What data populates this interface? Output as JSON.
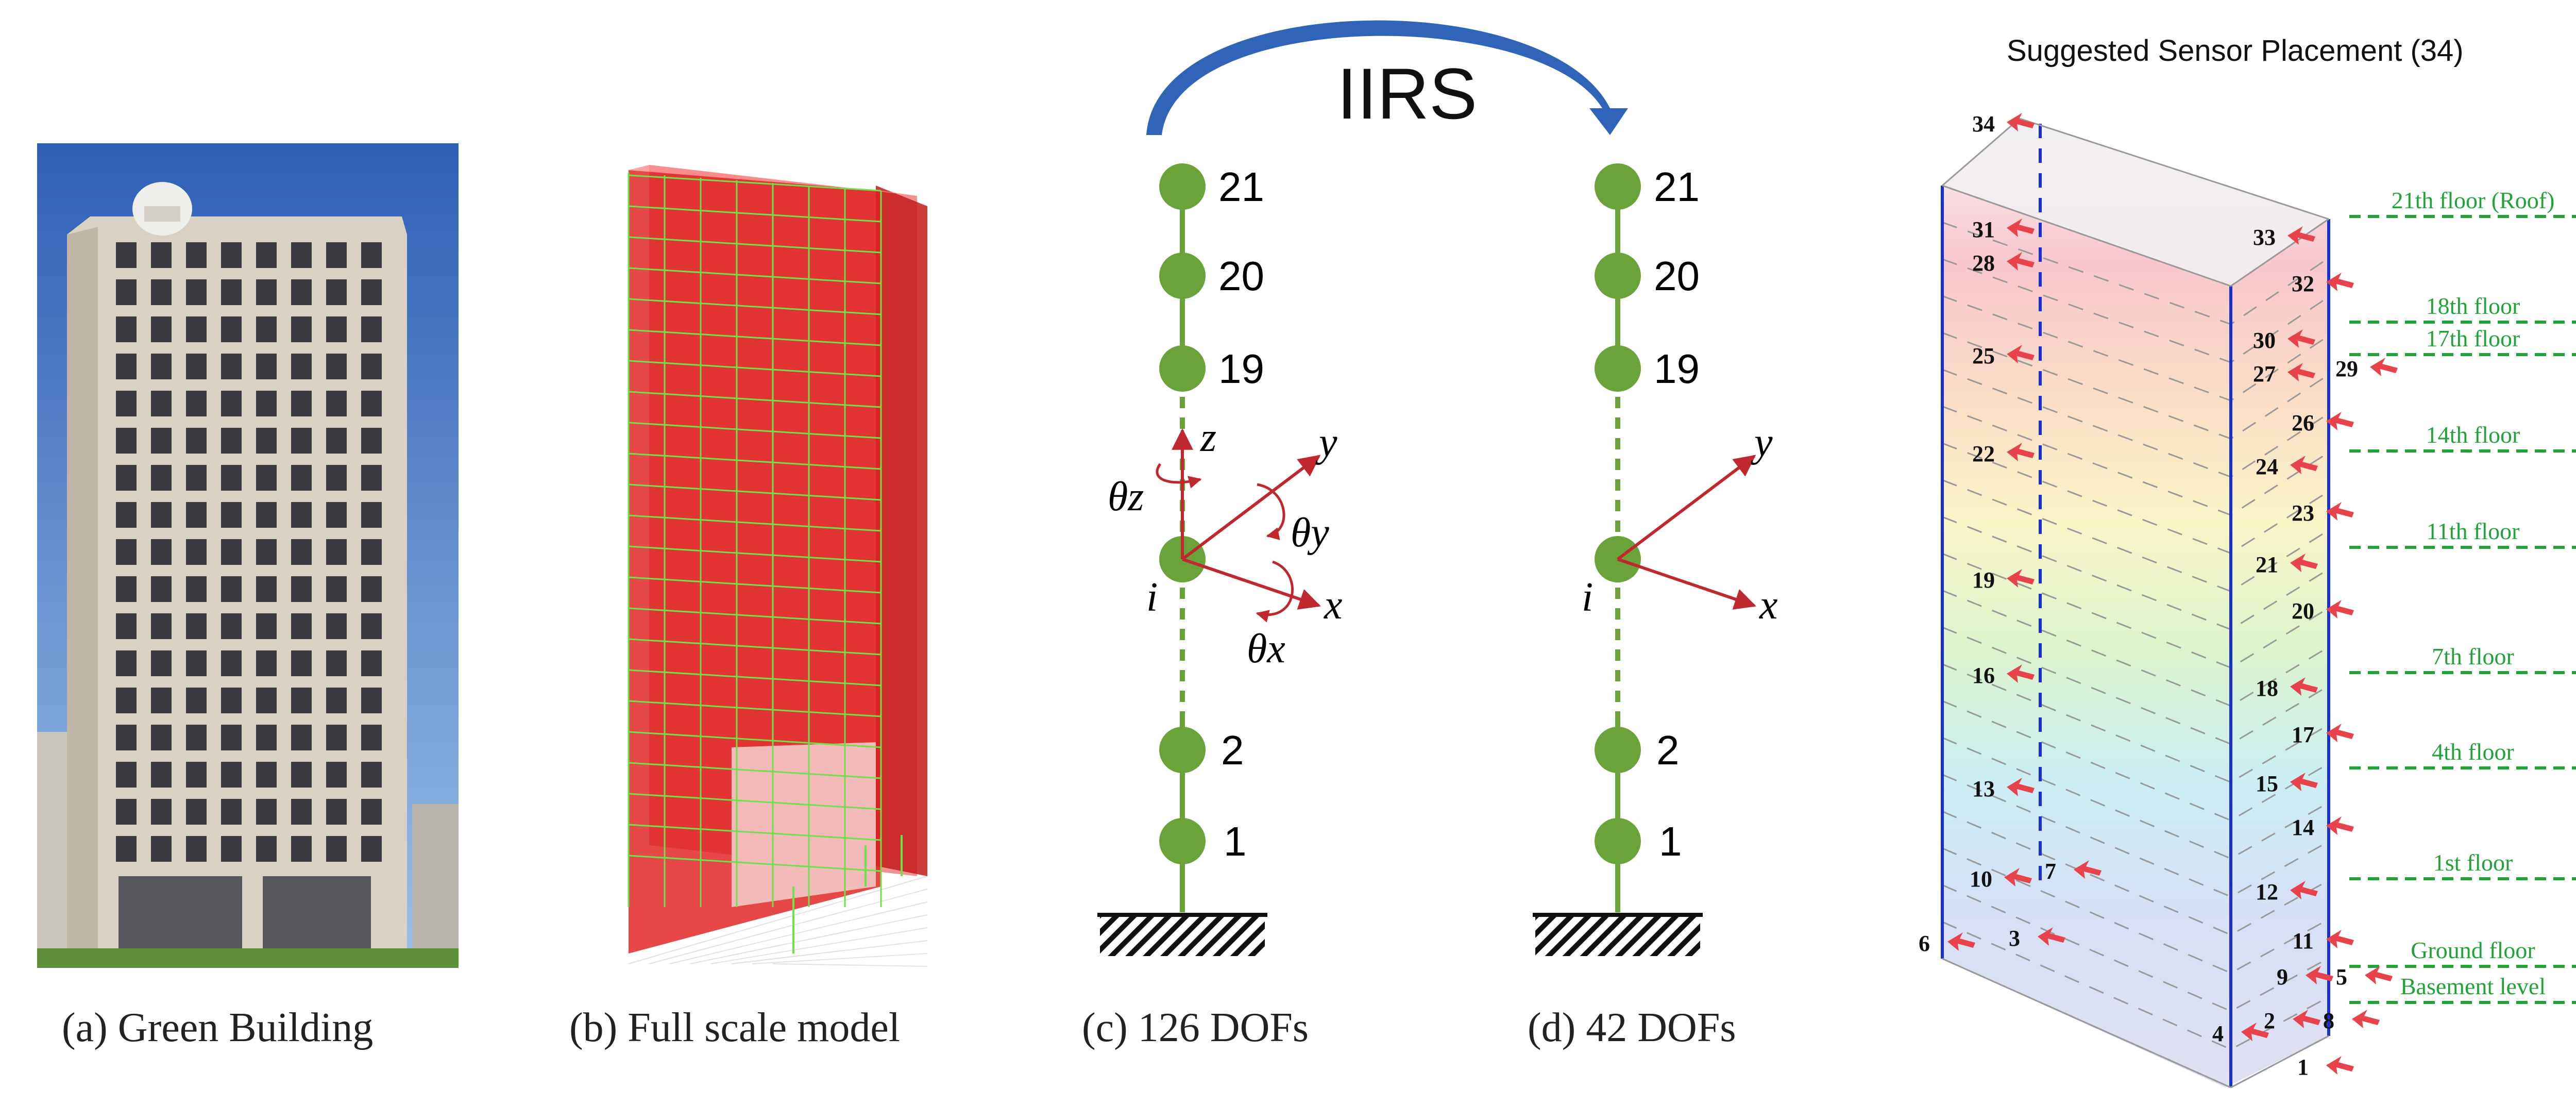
{
  "captions": {
    "a": "(a) Green Building",
    "b": "(b) Full scale model",
    "c": "(c) 126 DOFs",
    "d": "(d) 42 DOFs"
  },
  "iirs_label": "IIRS",
  "node_labels": [
    "21",
    "20",
    "19",
    "2",
    "1"
  ],
  "node_i_label": "i",
  "axes": {
    "x": "x",
    "y": "y",
    "z": "z",
    "theta_x": "θx",
    "theta_y": "θy",
    "theta_z": "θz"
  },
  "sensor_panel": {
    "title": "Suggested Sensor Placement (34)",
    "floors": [
      "21th floor (Roof)",
      "18th floor",
      "17th floor",
      "14th floor",
      "11th floor",
      "7th floor",
      "4th floor",
      "1st floor",
      "Ground floor",
      "Basement level"
    ],
    "sensor_numbers": [
      "1",
      "2",
      "3",
      "4",
      "5",
      "6",
      "7",
      "8",
      "9",
      "10",
      "11",
      "12",
      "13",
      "14",
      "15",
      "16",
      "17",
      "18",
      "19",
      "20",
      "21",
      "22",
      "23",
      "24",
      "25",
      "26",
      "27",
      "28",
      "29",
      "30",
      "31",
      "32",
      "33",
      "34"
    ]
  },
  "colors": {
    "node_green": "#6aa33a",
    "arrow_red": "#c0282d",
    "iirs_arrow": "#2f64b8",
    "floor_green": "#21a33a",
    "frame_blue": "#1a2fd0"
  }
}
